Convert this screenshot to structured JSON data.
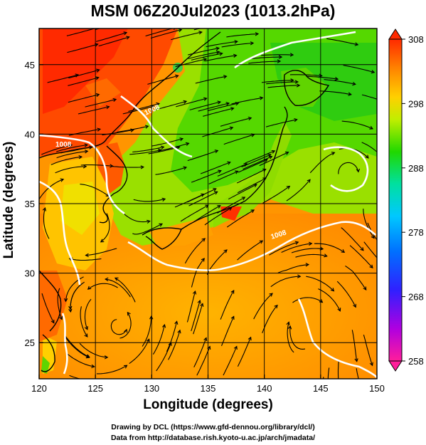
{
  "title": "MSM 06Z20Jul2023 (1013.2hPa)",
  "xlabel": "Longitude (degrees)",
  "ylabel": "Latitude  (degrees)",
  "credits": {
    "line1": "Drawing by DCL (https://www.gfd-dennou.org/library/dcl/)",
    "line2": "Data from http://database.rish.kyoto-u.ac.jp/arch/jmadata/"
  },
  "chart_data": {
    "type": "heatmap",
    "xlim": [
      120,
      150
    ],
    "ylim": [
      22.4,
      47.6
    ],
    "x_ticks": [
      120,
      125,
      130,
      135,
      140,
      145,
      150
    ],
    "y_ticks": [
      25,
      30,
      35,
      40,
      45
    ],
    "grid": true,
    "colorbar": {
      "range": [
        258,
        308
      ],
      "tick_labels": [
        308,
        298,
        288,
        278,
        268,
        258
      ],
      "colors": [
        "#ff1d6b",
        "#e000e0",
        "#7000ff",
        "#0020ff",
        "#0080ff",
        "#00c8ff",
        "#00e8c8",
        "#00e070",
        "#30d000",
        "#90e000",
        "#e0f000",
        "#ffd000",
        "#ff9a00",
        "#ff5000",
        "#ff2000"
      ]
    },
    "contour_labels": [
      "1008",
      "1008",
      "1008"
    ],
    "contour_color": "#ffffff",
    "streamline_color": "#000000"
  }
}
